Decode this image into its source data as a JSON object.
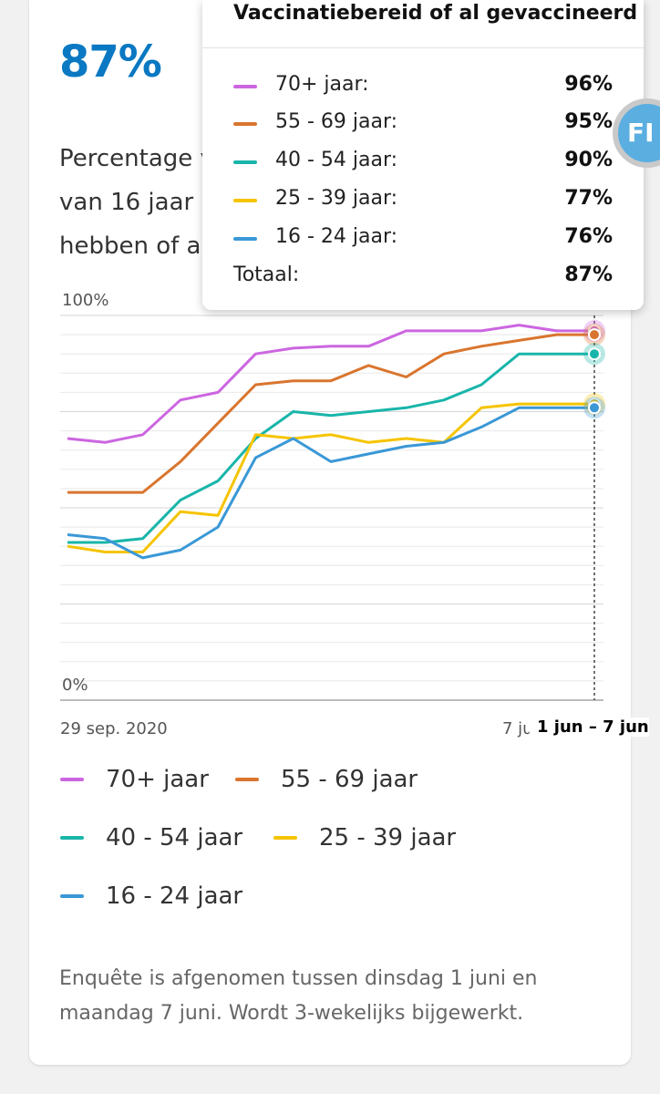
{
  "headline": {
    "value": "87%"
  },
  "description": {
    "lines": [
      "Percentage van",
      "van 16 jaar en",
      "hebben of al"
    ]
  },
  "chart_data": {
    "type": "line",
    "ylim": [
      0,
      100
    ],
    "ytick_labels": [
      "100%",
      "0%"
    ],
    "x_start_label": "29 sep. 2020",
    "x_end_label_partial": "7 ju",
    "current_period_label": "1 jun – 7 jun",
    "x_count": 15,
    "series": [
      {
        "name": "70+ jaar",
        "color": "#cc66e0",
        "values": [
          68,
          67,
          69,
          78,
          80,
          90,
          91.5,
          92,
          92,
          96,
          96,
          96,
          97.5,
          96,
          96
        ]
      },
      {
        "name": "55 - 69 jaar",
        "color": "#d9752e",
        "values": [
          54,
          54,
          54,
          62,
          72,
          82,
          83,
          83,
          87,
          84,
          90,
          92,
          93.5,
          95,
          95
        ]
      },
      {
        "name": "40 - 54 jaar",
        "color": "#19b5aa",
        "values": [
          41,
          41,
          42,
          52,
          57,
          68,
          75,
          74,
          75,
          76,
          78,
          82,
          90,
          90,
          90
        ]
      },
      {
        "name": "25 - 39 jaar",
        "color": "#f5c400",
        "values": [
          40,
          38.5,
          38.5,
          49,
          48,
          69,
          68,
          69,
          67,
          68,
          67,
          76,
          77,
          77,
          77
        ]
      },
      {
        "name": "16 - 24 jaar",
        "color": "#3a98d6",
        "values": [
          43,
          42,
          37,
          39,
          45,
          63,
          68,
          62,
          64,
          66,
          67,
          71,
          76,
          76,
          76
        ]
      }
    ],
    "legend": [
      "70+ jaar",
      "55 - 69 jaar",
      "40 - 54 jaar",
      "25 - 39 jaar",
      "16 - 24 jaar"
    ]
  },
  "tooltip": {
    "title": "Vaccinatiebereid of al gevaccineerd",
    "rows": [
      {
        "label": "70+ jaar:",
        "value": "96%",
        "color": "#cc66e0"
      },
      {
        "label": "55 - 69 jaar:",
        "value": "95%",
        "color": "#d9752e"
      },
      {
        "label": "40 - 54 jaar:",
        "value": "90%",
        "color": "#19b5aa"
      },
      {
        "label": "25 - 39 jaar:",
        "value": "77%",
        "color": "#f5c400"
      },
      {
        "label": "16 - 24 jaar:",
        "value": "76%",
        "color": "#3a98d6"
      }
    ],
    "total_label": "Totaal:",
    "total_value": "87%"
  },
  "footnote": "Enquête is afgenomen tussen dinsdag 1 juni en maandag 7 juni. Wordt 3-wekelijks bijgewerkt.",
  "fab": {
    "label": "FI",
    "icon": "feedback-icon"
  }
}
